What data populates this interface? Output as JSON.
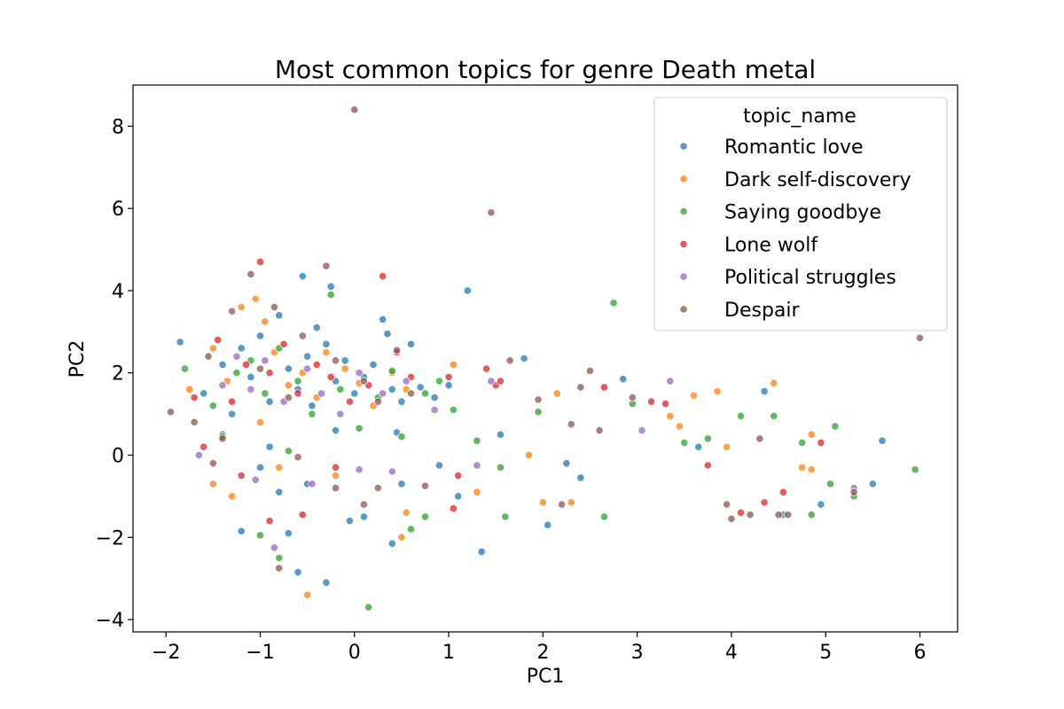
{
  "chart_data": {
    "type": "scatter",
    "title": "Most common topics for genre Death metal",
    "xlabel": "PC1",
    "ylabel": "PC2",
    "xlim": [
      -2.35,
      6.4
    ],
    "ylim": [
      -4.3,
      9.0
    ],
    "xticks": [
      -2,
      -1,
      0,
      1,
      2,
      3,
      4,
      5,
      6
    ],
    "yticks": [
      -4,
      -2,
      0,
      2,
      4,
      6,
      8
    ],
    "grid": false,
    "legend": {
      "title": "topic_name",
      "placement": "top-right"
    },
    "series": [
      {
        "name": "Romantic love",
        "color": "#1f77b4",
        "points": [
          [
            -1.85,
            2.75
          ],
          [
            -1.6,
            1.5
          ],
          [
            -1.4,
            2.2
          ],
          [
            -1.3,
            1.0
          ],
          [
            -1.2,
            2.6
          ],
          [
            -1.1,
            1.9
          ],
          [
            -1.0,
            2.9
          ],
          [
            -0.9,
            1.3
          ],
          [
            -0.8,
            3.4
          ],
          [
            -0.7,
            2.1
          ],
          [
            -0.6,
            1.6
          ],
          [
            -0.55,
            4.35
          ],
          [
            -0.5,
            2.4
          ],
          [
            -0.45,
            1.2
          ],
          [
            -0.4,
            3.1
          ],
          [
            -0.3,
            2.7
          ],
          [
            -0.25,
            4.1
          ],
          [
            -0.2,
            1.8
          ],
          [
            -0.1,
            2.3
          ],
          [
            0.0,
            1.5
          ],
          [
            0.1,
            1.9
          ],
          [
            0.2,
            2.2
          ],
          [
            0.3,
            3.3
          ],
          [
            0.35,
            2.95
          ],
          [
            0.4,
            1.6
          ],
          [
            0.5,
            1.3
          ],
          [
            0.6,
            2.7
          ],
          [
            0.7,
            1.65
          ],
          [
            0.85,
            1.4
          ],
          [
            1.0,
            1.7
          ],
          [
            1.2,
            4.0
          ],
          [
            1.1,
            -1.0
          ],
          [
            1.35,
            -2.35
          ],
          [
            1.55,
            0.5
          ],
          [
            1.8,
            2.35
          ],
          [
            2.05,
            -1.7
          ],
          [
            2.25,
            -0.2
          ],
          [
            2.4,
            -0.55
          ],
          [
            2.85,
            1.85
          ],
          [
            3.65,
            0.2
          ],
          [
            4.35,
            1.55
          ],
          [
            4.55,
            -1.45
          ],
          [
            4.95,
            -1.2
          ],
          [
            5.5,
            -0.7
          ],
          [
            5.6,
            0.35
          ],
          [
            -1.0,
            -0.3
          ],
          [
            -0.8,
            -0.9
          ],
          [
            -0.6,
            -2.85
          ],
          [
            -0.5,
            -0.7
          ],
          [
            -0.3,
            -3.1
          ],
          [
            -0.05,
            -1.6
          ],
          [
            0.1,
            -1.5
          ],
          [
            0.4,
            -2.15
          ],
          [
            0.5,
            -0.7
          ],
          [
            0.9,
            -0.25
          ],
          [
            -1.2,
            -1.85
          ],
          [
            -0.7,
            -1.9
          ],
          [
            -0.9,
            0.2
          ],
          [
            -1.4,
            0.5
          ],
          [
            -0.2,
            0.6
          ],
          [
            0.45,
            0.55
          ]
        ]
      },
      {
        "name": "Dark self-discovery",
        "color": "#ff7f0e",
        "points": [
          [
            -1.75,
            1.6
          ],
          [
            -1.5,
            2.6
          ],
          [
            -1.35,
            1.8
          ],
          [
            -1.2,
            3.6
          ],
          [
            -1.05,
            3.8
          ],
          [
            -0.95,
            3.25
          ],
          [
            -0.85,
            2.5
          ],
          [
            -0.7,
            1.7
          ],
          [
            -0.55,
            2.0
          ],
          [
            -0.4,
            1.4
          ],
          [
            -0.3,
            2.5
          ],
          [
            -0.1,
            2.1
          ],
          [
            0.05,
            1.75
          ],
          [
            0.2,
            1.2
          ],
          [
            0.4,
            2.0
          ],
          [
            0.55,
            1.6
          ],
          [
            1.05,
            2.2
          ],
          [
            1.85,
            0.0
          ],
          [
            2.0,
            -1.15
          ],
          [
            2.15,
            1.5
          ],
          [
            2.3,
            -1.15
          ],
          [
            3.35,
            0.95
          ],
          [
            3.45,
            0.7
          ],
          [
            3.6,
            1.45
          ],
          [
            3.85,
            1.55
          ],
          [
            3.95,
            0.2
          ],
          [
            4.45,
            1.75
          ],
          [
            4.75,
            -0.3
          ],
          [
            4.85,
            -0.35
          ],
          [
            4.85,
            0.5
          ],
          [
            -0.5,
            -3.4
          ],
          [
            0.5,
            -2.0
          ],
          [
            0.55,
            -1.4
          ],
          [
            1.3,
            -0.9
          ],
          [
            -1.0,
            0.8
          ],
          [
            -1.5,
            -0.7
          ],
          [
            -1.3,
            -1.0
          ],
          [
            -0.8,
            -0.3
          ],
          [
            -0.2,
            -0.5
          ]
        ]
      },
      {
        "name": "Saying goodbye",
        "color": "#2ca02c",
        "points": [
          [
            -1.8,
            2.1
          ],
          [
            -1.5,
            1.2
          ],
          [
            -1.25,
            2.0
          ],
          [
            -1.1,
            2.3
          ],
          [
            -0.95,
            1.5
          ],
          [
            -0.8,
            2.6
          ],
          [
            -0.6,
            1.8
          ],
          [
            -0.45,
            1.0
          ],
          [
            -0.25,
            3.9
          ],
          [
            -0.15,
            1.6
          ],
          [
            0.05,
            0.65
          ],
          [
            0.25,
            1.4
          ],
          [
            0.4,
            2.05
          ],
          [
            0.5,
            0.45
          ],
          [
            0.75,
            1.5
          ],
          [
            0.9,
            1.8
          ],
          [
            1.05,
            1.1
          ],
          [
            1.3,
            0.35
          ],
          [
            1.55,
            -0.3
          ],
          [
            1.6,
            -1.5
          ],
          [
            1.95,
            1.05
          ],
          [
            2.65,
            -1.5
          ],
          [
            2.75,
            3.7
          ],
          [
            2.95,
            1.25
          ],
          [
            3.5,
            0.3
          ],
          [
            3.75,
            0.4
          ],
          [
            4.1,
            0.95
          ],
          [
            4.45,
            0.95
          ],
          [
            4.75,
            0.3
          ],
          [
            4.85,
            -1.45
          ],
          [
            5.05,
            -0.7
          ],
          [
            5.1,
            0.7
          ],
          [
            5.3,
            -1.0
          ],
          [
            5.95,
            -0.35
          ],
          [
            -1.0,
            -1.95
          ],
          [
            -0.8,
            -2.5
          ],
          [
            0.15,
            -3.7
          ],
          [
            0.6,
            -1.8
          ],
          [
            0.75,
            -1.5
          ],
          [
            -1.4,
            0.45
          ],
          [
            -0.7,
            0.1
          ]
        ]
      },
      {
        "name": "Lone wolf",
        "color": "#d62728",
        "points": [
          [
            -1.7,
            1.4
          ],
          [
            -1.45,
            2.8
          ],
          [
            -1.3,
            1.3
          ],
          [
            -1.15,
            2.2
          ],
          [
            -1.0,
            4.7
          ],
          [
            -0.9,
            2.0
          ],
          [
            -0.75,
            2.7
          ],
          [
            -0.6,
            1.5
          ],
          [
            -0.4,
            2.2
          ],
          [
            -0.25,
            1.9
          ],
          [
            -0.05,
            1.3
          ],
          [
            0.15,
            1.7
          ],
          [
            0.3,
            4.35
          ],
          [
            0.45,
            2.5
          ],
          [
            0.6,
            1.9
          ],
          [
            1.0,
            1.9
          ],
          [
            1.4,
            2.1
          ],
          [
            1.5,
            1.7
          ],
          [
            1.55,
            1.8
          ],
          [
            2.65,
            1.65
          ],
          [
            3.15,
            1.3
          ],
          [
            3.3,
            1.25
          ],
          [
            3.75,
            -0.25
          ],
          [
            4.1,
            -1.4
          ],
          [
            4.35,
            -1.15
          ],
          [
            4.55,
            -0.9
          ],
          [
            4.95,
            0.3
          ],
          [
            -0.9,
            -1.6
          ],
          [
            -0.55,
            -1.45
          ],
          [
            -0.2,
            -0.3
          ],
          [
            1.1,
            -0.5
          ],
          [
            1.05,
            -1.3
          ],
          [
            -1.2,
            -0.5
          ],
          [
            -1.6,
            0.2
          ]
        ]
      },
      {
        "name": "Political struggles",
        "color": "#9467bd",
        "points": [
          [
            -1.65,
            0.0
          ],
          [
            -1.4,
            1.7
          ],
          [
            -1.25,
            2.4
          ],
          [
            -1.1,
            1.6
          ],
          [
            -0.95,
            2.3
          ],
          [
            -0.75,
            1.3
          ],
          [
            -0.5,
            2.1
          ],
          [
            -0.35,
            1.5
          ],
          [
            -0.15,
            1.0
          ],
          [
            0.05,
            2.0
          ],
          [
            0.3,
            1.5
          ],
          [
            0.55,
            1.8
          ],
          [
            0.85,
            1.1
          ],
          [
            1.3,
            -0.25
          ],
          [
            1.45,
            1.8
          ],
          [
            3.05,
            0.6
          ],
          [
            3.35,
            1.8
          ],
          [
            5.3,
            -0.8
          ],
          [
            -0.85,
            -2.25
          ],
          [
            -0.45,
            -0.7
          ],
          [
            0.05,
            -0.35
          ],
          [
            0.4,
            -0.4
          ],
          [
            -1.05,
            -0.6
          ]
        ]
      },
      {
        "name": "Despair",
        "color": "#8c564b",
        "points": [
          [
            -1.95,
            1.05
          ],
          [
            -1.7,
            0.8
          ],
          [
            -1.55,
            2.4
          ],
          [
            -1.4,
            0.4
          ],
          [
            -1.3,
            3.5
          ],
          [
            -1.1,
            4.4
          ],
          [
            -1.0,
            2.1
          ],
          [
            -0.85,
            3.6
          ],
          [
            -0.7,
            1.4
          ],
          [
            -0.55,
            2.9
          ],
          [
            -0.3,
            4.6
          ],
          [
            -0.2,
            2.3
          ],
          [
            0.0,
            8.4
          ],
          [
            0.1,
            1.8
          ],
          [
            0.25,
            1.3
          ],
          [
            0.45,
            2.55
          ],
          [
            0.6,
            1.5
          ],
          [
            1.45,
            5.9
          ],
          [
            1.65,
            2.3
          ],
          [
            1.95,
            1.35
          ],
          [
            2.2,
            -1.2
          ],
          [
            2.3,
            0.75
          ],
          [
            2.4,
            1.65
          ],
          [
            2.5,
            2.05
          ],
          [
            2.6,
            0.6
          ],
          [
            2.95,
            1.4
          ],
          [
            3.95,
            -1.2
          ],
          [
            4.0,
            -1.55
          ],
          [
            4.2,
            -1.45
          ],
          [
            4.3,
            0.4
          ],
          [
            4.5,
            -1.45
          ],
          [
            4.6,
            -1.45
          ],
          [
            5.3,
            -0.9
          ],
          [
            6.0,
            2.85
          ],
          [
            -0.8,
            -2.75
          ],
          [
            -0.2,
            -0.8
          ],
          [
            0.1,
            -1.2
          ],
          [
            0.25,
            -0.8
          ],
          [
            0.75,
            -0.75
          ],
          [
            -0.6,
            -0.05
          ],
          [
            -1.5,
            -0.2
          ]
        ]
      }
    ]
  }
}
